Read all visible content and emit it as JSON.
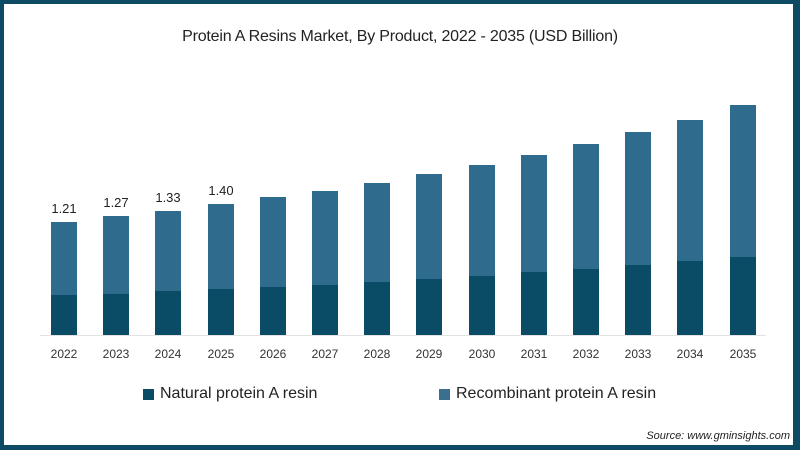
{
  "chart_data": {
    "type": "bar",
    "stacked": true,
    "title": "Protein A Resins Market, By Product, 2022 - 2035 (USD Billion)",
    "xlabel": "",
    "ylabel": "",
    "categories": [
      "2022",
      "2023",
      "2024",
      "2025",
      "2026",
      "2027",
      "2028",
      "2029",
      "2030",
      "2031",
      "2032",
      "2033",
      "2034",
      "2035"
    ],
    "series": [
      {
        "name": "Natural protein A resin",
        "color": "#0a4c66",
        "values": [
          0.43,
          0.44,
          0.47,
          0.49,
          0.51,
          0.54,
          0.57,
          0.6,
          0.63,
          0.67,
          0.71,
          0.75,
          0.79,
          0.84
        ]
      },
      {
        "name": "Recombinant protein A resin",
        "color": "#2e6b8d",
        "values": [
          0.78,
          0.83,
          0.86,
          0.91,
          0.97,
          1.0,
          1.06,
          1.12,
          1.19,
          1.26,
          1.33,
          1.42,
          1.51,
          1.62
        ]
      }
    ],
    "totals": [
      1.21,
      1.27,
      1.33,
      1.4,
      1.48,
      1.54,
      1.63,
      1.72,
      1.82,
      1.93,
      2.04,
      2.17,
      2.3,
      2.46
    ],
    "data_labels": [
      "1.21",
      "1.27",
      "1.33",
      "1.40",
      "",
      "",
      "",
      "",
      "",
      "",
      "",
      "",
      "",
      ""
    ],
    "grid": false,
    "legend_position": "bottom",
    "source": "Source: www.gminsights.com"
  },
  "legend": {
    "natural": "Natural protein A resin",
    "recombinant": "Recombinant protein A resin"
  },
  "colors": {
    "border": "#0d4a63",
    "natural": "#0a4c66",
    "recombinant": "#2e6b8d"
  }
}
